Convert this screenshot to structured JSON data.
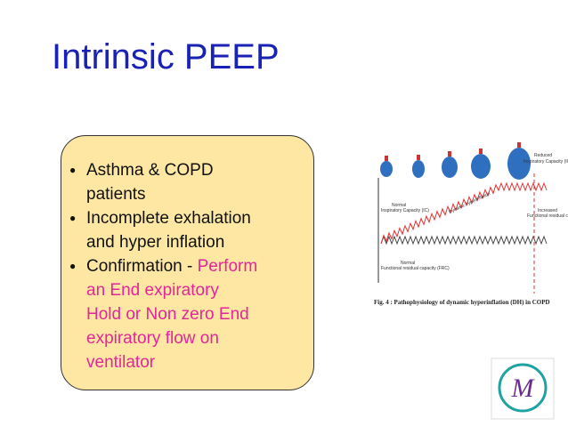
{
  "title": "Intrinsic PEEP",
  "bullets": [
    {
      "lines": [
        "Asthma & COPD",
        "patients"
      ]
    },
    {
      "lines": [
        "Incomplete exhalation",
        "and  hyper inflation"
      ]
    },
    {
      "label": "Confirmation - ",
      "detail_lines": [
        "Perform",
        "an  End expiratory",
        "Hold or  Non zero End",
        "expiratory  flow on",
        "ventilator"
      ]
    }
  ],
  "figure": {
    "labels": {
      "reduced": [
        "Reduced",
        "Inspiratory Capacity (IC)"
      ],
      "normal_ic": [
        "Normal",
        "Inspiratory Capacity (IC)"
      ],
      "dh": "Dynamic hyperinflation",
      "increased": [
        "Increased",
        "Functional residual capacity (FRC)"
      ],
      "normal_frc": [
        "Normal",
        "Functional residual capacity (FRC)"
      ]
    },
    "caption": "Fig. 4 : Pathophysiology of dynamic hyperinflation (DH) in COPD"
  }
}
